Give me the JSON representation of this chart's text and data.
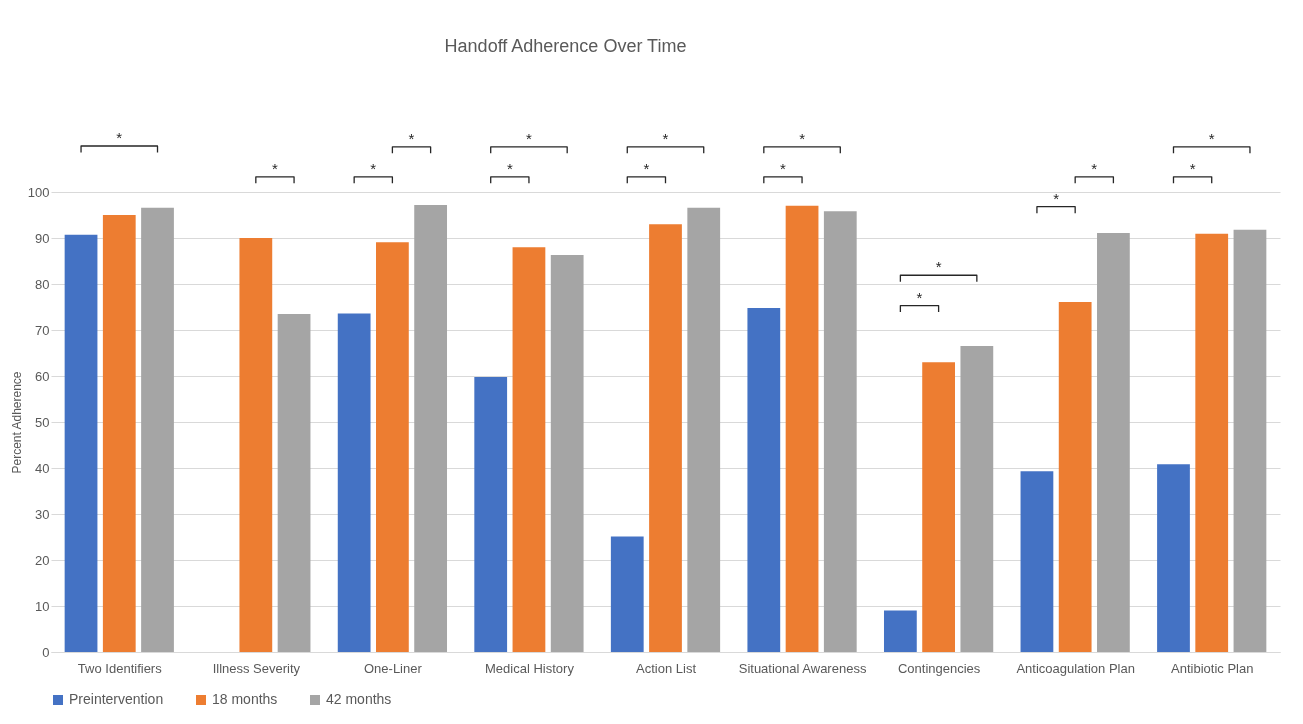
{
  "chart_data": {
    "type": "bar",
    "title": "Handoff Adherence Over Time",
    "ylabel": "Percent Adherence",
    "categories": [
      "Two Identifiers",
      "Illness Severity",
      "One-Liner",
      "Medical History",
      "Action List",
      "Situational Awareness",
      "Contingencies",
      "Anticoagulation Plan",
      "Antibiotic Plan"
    ],
    "series": [
      {
        "name": "Preintervention",
        "color": "#4472c4",
        "values": [
          90.7,
          null,
          73.6,
          59.8,
          25.1,
          74.8,
          9.0,
          39.3,
          40.8
        ]
      },
      {
        "name": "18 months",
        "color": "#ed7d31",
        "values": [
          95.0,
          90.0,
          89.1,
          88.0,
          93.0,
          97.0,
          63.0,
          76.1,
          90.9
        ]
      },
      {
        "name": "42 months",
        "color": "#a5a5a5",
        "values": [
          96.6,
          73.5,
          97.2,
          86.3,
          96.6,
          95.8,
          66.5,
          91.1,
          91.8
        ]
      }
    ],
    "ylim": [
      0,
      100
    ],
    "yticks": [
      0,
      10,
      20,
      30,
      40,
      50,
      60,
      70,
      80,
      90,
      100
    ],
    "grid": "y",
    "legend": "bottom",
    "annotations": [
      "*",
      "*",
      "*",
      "*",
      "*",
      "*",
      "*",
      "*",
      "*",
      "*",
      "*",
      "*",
      "*",
      "*",
      "*",
      "*"
    ]
  }
}
